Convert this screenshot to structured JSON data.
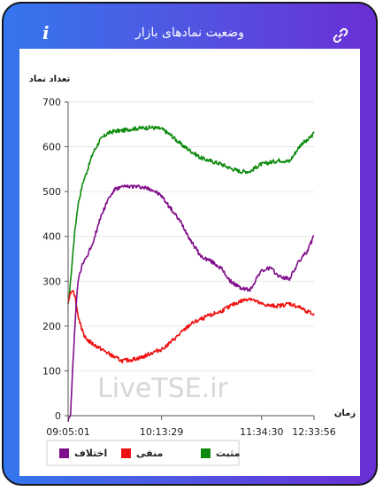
{
  "header": {
    "title": "وضعیت نمادهای بازار",
    "info_icon": "info-icon",
    "link_icon": "link-icon"
  },
  "colors": {
    "positive": "#0d8a0d",
    "negative": "#ee1111",
    "spread": "#800d8a"
  },
  "chart_data": {
    "type": "line",
    "ylabel": "تعداد نماد",
    "xlabel": "زمان",
    "ylim": [
      0,
      700
    ],
    "yticks": [
      0,
      100,
      200,
      300,
      400,
      500,
      600,
      700
    ],
    "x_range": [
      0,
      1000
    ],
    "xticks": [
      {
        "pos": 0,
        "label": "09:05:01"
      },
      {
        "pos": 380,
        "label": "10:13:29"
      },
      {
        "pos": 787,
        "label": "11:34:30"
      },
      {
        "pos": 1000,
        "label": "12:33:56"
      }
    ],
    "watermark": "LiveTSE.ir",
    "legend": [
      "مثبت",
      "منفی",
      "اختلاف"
    ],
    "series": [
      {
        "name": "مثبت",
        "color": "#0d8a0d",
        "x": [
          0,
          10,
          25,
          40,
          60,
          80,
          100,
          130,
          160,
          190,
          220,
          260,
          300,
          340,
          380,
          420,
          460,
          500,
          540,
          580,
          620,
          660,
          700,
          740,
          780,
          820,
          860,
          900,
          940,
          955,
          970,
          1000
        ],
        "y": [
          245,
          300,
          400,
          470,
          520,
          550,
          585,
          615,
          630,
          635,
          636,
          640,
          642,
          643,
          640,
          625,
          605,
          590,
          575,
          568,
          562,
          552,
          545,
          545,
          560,
          565,
          570,
          567,
          600,
          610,
          612,
          630
        ]
      },
      {
        "name": "منفی",
        "color": "#ee1111",
        "x": [
          0,
          10,
          20,
          30,
          40,
          60,
          80,
          100,
          130,
          160,
          190,
          220,
          260,
          300,
          340,
          380,
          420,
          460,
          500,
          540,
          580,
          620,
          660,
          700,
          740,
          780,
          820,
          860,
          900,
          940,
          1000
        ],
        "y": [
          255,
          275,
          282,
          260,
          225,
          185,
          168,
          160,
          150,
          140,
          130,
          122,
          125,
          130,
          140,
          148,
          165,
          185,
          205,
          215,
          225,
          232,
          245,
          255,
          262,
          250,
          245,
          245,
          250,
          242,
          225
        ]
      },
      {
        "name": "اختلاف",
        "color": "#800d8a",
        "x": [
          0,
          10,
          20,
          30,
          40,
          60,
          80,
          100,
          130,
          160,
          190,
          220,
          260,
          300,
          340,
          380,
          420,
          460,
          500,
          540,
          580,
          620,
          660,
          700,
          740,
          780,
          820,
          860,
          900,
          940,
          970,
          1000
        ],
        "y": [
          -10,
          5,
          120,
          220,
          300,
          340,
          360,
          385,
          440,
          480,
          505,
          510,
          512,
          510,
          505,
          490,
          460,
          430,
          390,
          355,
          345,
          330,
          300,
          285,
          280,
          320,
          330,
          310,
          305,
          345,
          365,
          400
        ]
      }
    ]
  }
}
